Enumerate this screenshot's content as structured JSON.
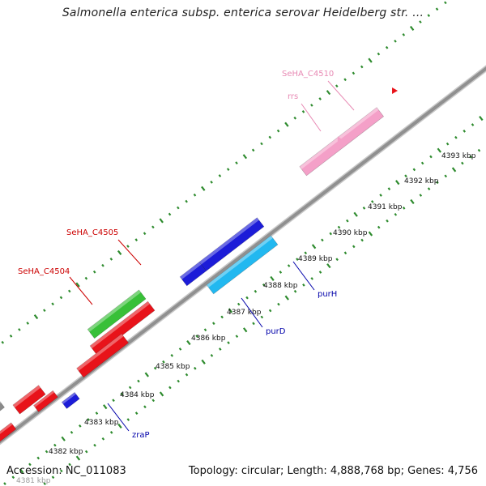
{
  "title": "Salmonella enterica subsp. enterica serovar Heidelberg str. ...",
  "footer": {
    "accession": "Accession: NC_011083",
    "summary": "Topology: circular; Length: 4,888,768 bp; Genes: 4,756"
  },
  "colors": {
    "backbone": "#909090",
    "tick_green": "#2e8b2e",
    "label_red": "#cc0000",
    "label_pink": "#e88ab4",
    "label_blue": "#0000aa",
    "red": "#e8131a",
    "blue": "#1c1cd8",
    "cyan": "#22b8f0",
    "green": "#38c038",
    "pink": "#f4a0c8",
    "magenta": "#e020a0",
    "gray": "#8a8a8a"
  },
  "ticks": [
    {
      "label": "4381 kbp"
    },
    {
      "label": "4382 kbp"
    },
    {
      "label": "4383 kbp"
    },
    {
      "label": "4384 kbp"
    },
    {
      "label": "4385 kbp"
    },
    {
      "label": "4386 kbp"
    },
    {
      "label": "4387 kbp"
    },
    {
      "label": "4388 kbp"
    },
    {
      "label": "4389 kbp"
    },
    {
      "label": "4390 kbp"
    },
    {
      "label": "4391 kbp"
    },
    {
      "label": "4392 kbp"
    },
    {
      "label": "4393 kbp"
    }
  ],
  "gene_labels": [
    {
      "text": "SeHA_C4510",
      "color": "pink"
    },
    {
      "text": "rrs",
      "color": "pink"
    },
    {
      "text": "SeHA_C4505",
      "color": "red"
    },
    {
      "text": "SeHA_C4504",
      "color": "red"
    },
    {
      "text": "purH",
      "color": "blue"
    },
    {
      "text": "purD",
      "color": "blue"
    },
    {
      "text": "zraP",
      "color": "blue"
    }
  ]
}
